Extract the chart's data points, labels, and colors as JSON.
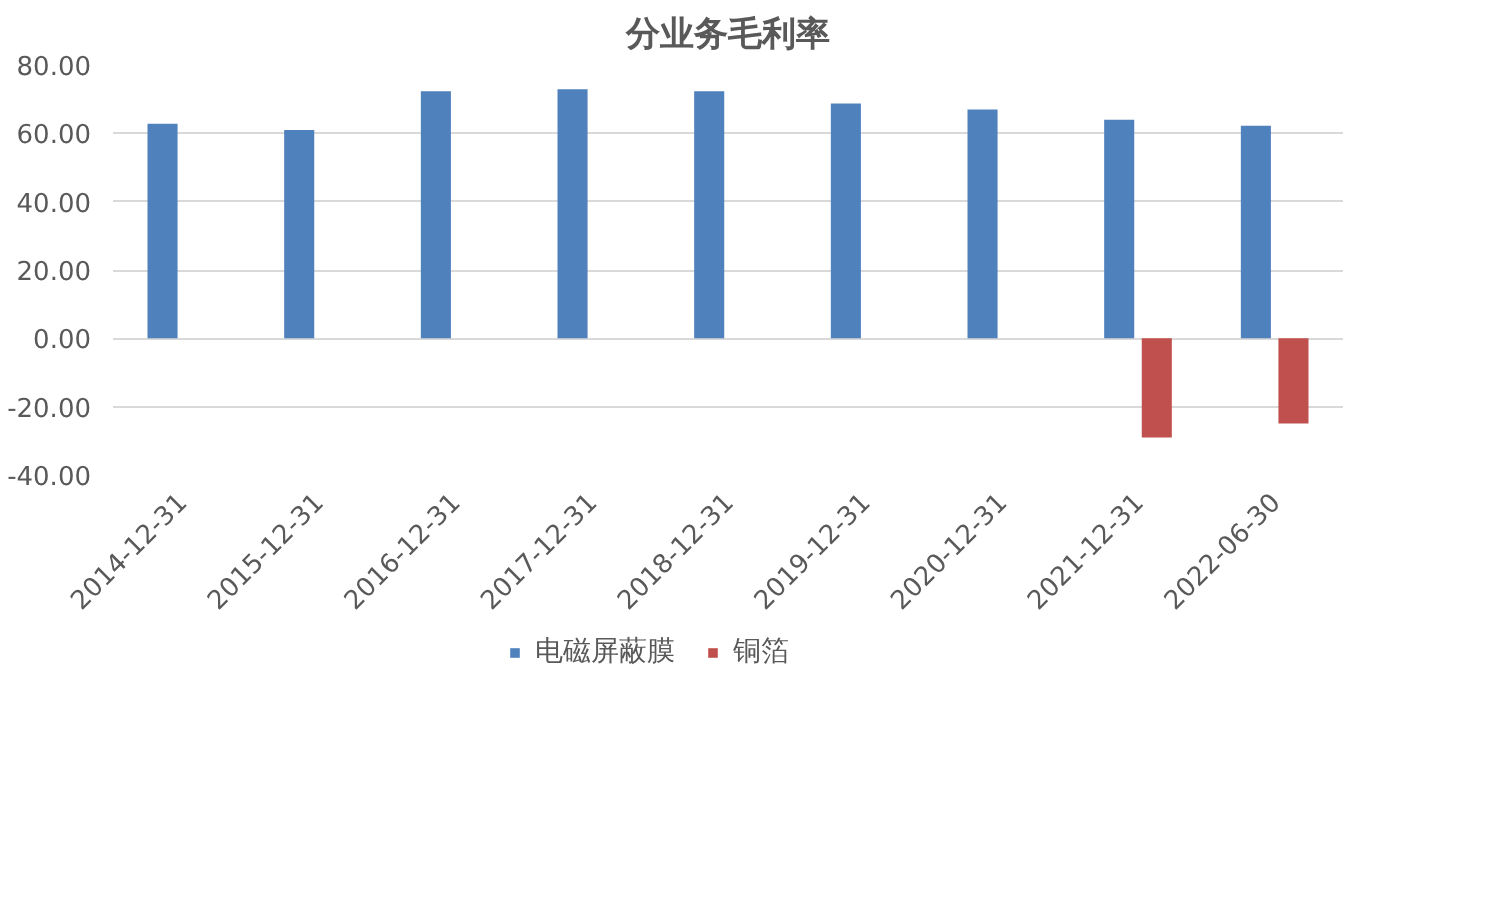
{
  "chart_data": {
    "type": "bar",
    "title": "分业务毛利率",
    "categories": [
      "2014-12-31",
      "2015-12-31",
      "2016-12-31",
      "2017-12-31",
      "2018-12-31",
      "2019-12-31",
      "2020-12-31",
      "2021-12-31",
      "2022-06-30"
    ],
    "series": [
      {
        "name": "电磁屏蔽膜",
        "color": "#4f81bd",
        "values": [
          62.8,
          61.0,
          72.3,
          72.9,
          72.3,
          68.7,
          67.0,
          64.0,
          62.2
        ]
      },
      {
        "name": "铜箔",
        "color": "#c0504d",
        "values": [
          null,
          null,
          null,
          null,
          null,
          null,
          null,
          -29.0,
          -24.9
        ]
      }
    ],
    "ylim": [
      -40,
      80
    ],
    "yticks": [
      {
        "value": -40,
        "label": "-40.00"
      },
      {
        "value": -20,
        "label": "-20.00"
      },
      {
        "value": 0,
        "label": "0.00"
      },
      {
        "value": 20,
        "label": "20.00"
      },
      {
        "value": 40,
        "label": "40.00"
      },
      {
        "value": 60,
        "label": "60.00"
      },
      {
        "value": 80,
        "label": "80.00"
      }
    ],
    "grid": "y",
    "legend": "bottom"
  }
}
